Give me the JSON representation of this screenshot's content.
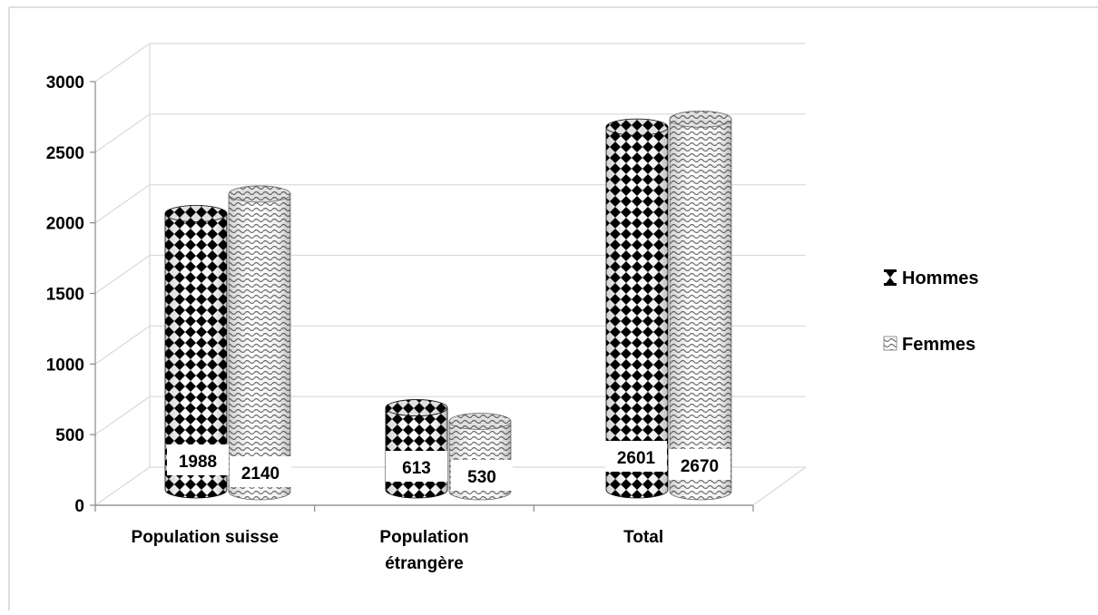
{
  "chart_data": {
    "type": "bar",
    "title": "",
    "xlabel": "",
    "ylabel": "",
    "categories": [
      "Population suisse",
      "Population étrangère",
      "Total"
    ],
    "category_lines": [
      [
        "Population suisse"
      ],
      [
        "Population",
        "étrangère"
      ],
      [
        "Total"
      ]
    ],
    "series": [
      {
        "name": "Hommes",
        "values": [
          1988,
          613,
          2601
        ]
      },
      {
        "name": "Femmes",
        "values": [
          2140,
          530,
          2670
        ]
      }
    ],
    "ylim": [
      0,
      3000
    ],
    "yticks": [
      "0",
      "500",
      "1000",
      "1500",
      "2000",
      "2500",
      "3000"
    ],
    "grid": true,
    "legend_position": "right",
    "three_d": true,
    "colors": {
      "hommes": "#000000",
      "femmes": "#777777",
      "grid": "#d9d9d9"
    }
  }
}
